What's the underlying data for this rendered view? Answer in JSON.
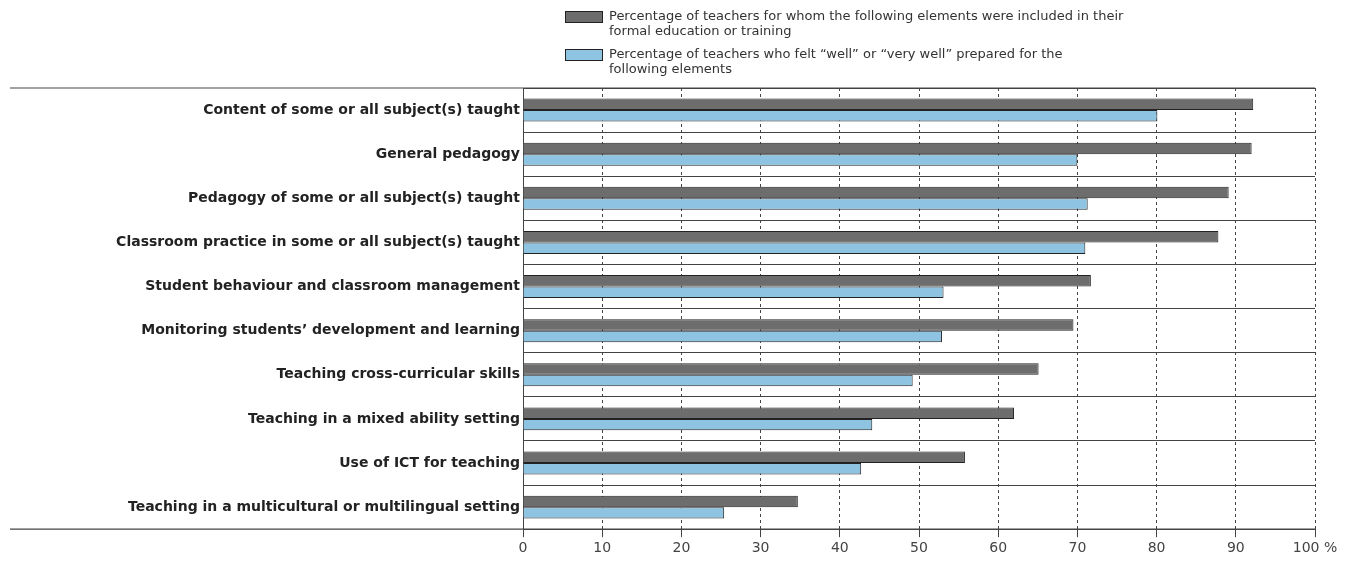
{
  "chart_data": {
    "type": "bar",
    "orientation": "horizontal",
    "categories": [
      "Content of some or all subject(s) taught",
      "General pedagogy",
      "Pedagogy of some or all subject(s) taught",
      "Classroom practice in some or all subject(s) taught",
      "Student behaviour and classroom management",
      "Monitoring students’ development and learning",
      "Teaching cross-curricular skills",
      "Teaching in a mixed ability setting",
      "Use of ICT for teaching",
      "Teaching in a multicultural or multilingual setting"
    ],
    "series": [
      {
        "name": "Percentage of teachers for whom the following elements were included in their formal education or training",
        "color": "#6d6d6d",
        "values": [
          92.2,
          92.0,
          89.1,
          87.8,
          71.7,
          69.5,
          65.1,
          62.0,
          55.8,
          34.7
        ]
      },
      {
        "name": "Percentage of teachers who felt “well” or “very well” prepared for the following elements",
        "color": "#8fc3e2",
        "values": [
          80.1,
          70.0,
          71.3,
          71.0,
          53.1,
          52.9,
          49.2,
          44.1,
          42.7,
          25.4
        ]
      }
    ],
    "xlim": [
      0,
      100
    ],
    "xticks": [
      0,
      10,
      20,
      30,
      40,
      50,
      60,
      70,
      80,
      90,
      {
        "value": 100,
        "label": "100 %"
      }
    ],
    "grid": true,
    "legend": "top"
  }
}
